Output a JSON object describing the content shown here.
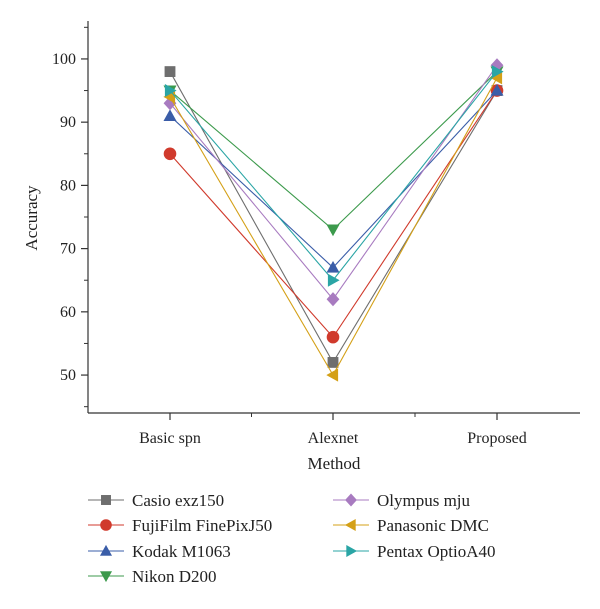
{
  "chart_data": {
    "type": "line",
    "xlabel": "Method",
    "ylabel": "Accuracy",
    "categories": [
      "Basic spn",
      "Alexnet",
      "Proposed"
    ],
    "ylim": [
      44,
      106
    ],
    "yticks": [
      50,
      60,
      70,
      80,
      90,
      100
    ],
    "grid": false,
    "legend_position": "bottom",
    "series": [
      {
        "name": "Casio exz150",
        "values": [
          98,
          52,
          95
        ],
        "color": "#6e6e6e",
        "marker": "square"
      },
      {
        "name": "FujiFilm FinePixJ50",
        "values": [
          85,
          56,
          95
        ],
        "color": "#d03a2c",
        "marker": "circle"
      },
      {
        "name": "Kodak M1063",
        "values": [
          91,
          67,
          95
        ],
        "color": "#3a5da8",
        "marker": "triangle-up"
      },
      {
        "name": "Nikon D200",
        "values": [
          95,
          73,
          98
        ],
        "color": "#3c9a4c",
        "marker": "triangle-down"
      },
      {
        "name": "Olympus mju",
        "values": [
          93,
          62,
          99
        ],
        "color": "#a87bc0",
        "marker": "diamond"
      },
      {
        "name": "Panasonic DMC",
        "values": [
          94,
          50,
          97
        ],
        "color": "#d4a017",
        "marker": "triangle-left"
      },
      {
        "name": "Pentax OptioA40",
        "values": [
          95,
          65,
          98
        ],
        "color": "#2aa5a5",
        "marker": "triangle-right"
      }
    ]
  }
}
